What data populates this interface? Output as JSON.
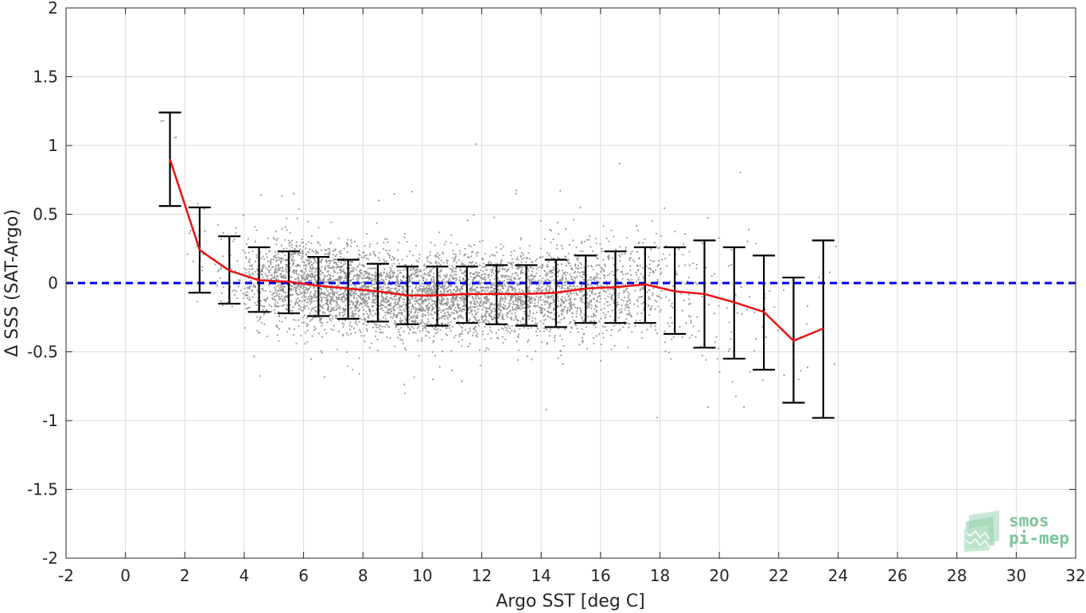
{
  "chart_data": {
    "type": "scatter",
    "xlabel": "Argo SST [deg C]",
    "ylabel": "Δ SSS (SAT-Argo)",
    "xlim": [
      -2,
      32
    ],
    "ylim": [
      -2,
      2
    ],
    "x_ticks": [
      -2,
      0,
      2,
      4,
      6,
      8,
      10,
      12,
      14,
      16,
      18,
      20,
      22,
      24,
      26,
      28,
      30,
      32
    ],
    "y_ticks": [
      -2,
      -1.5,
      -1,
      -0.5,
      0,
      0.5,
      1,
      1.5,
      2
    ],
    "grid": true,
    "reference_line": {
      "y": 0,
      "style": "dashed",
      "color": "#0000ee"
    },
    "mean_line_color": "#ee1111",
    "error_bar_color": "#000000",
    "scatter_color": "#8c8c8c",
    "binned_stats": {
      "x": [
        1.5,
        2.5,
        3.5,
        4.5,
        5.5,
        6.5,
        7.5,
        8.5,
        9.5,
        10.5,
        11.5,
        12.5,
        13.5,
        14.5,
        15.5,
        16.5,
        17.5,
        18.5,
        19.5,
        20.5,
        21.5,
        22.5,
        23.5
      ],
      "mean": [
        0.9,
        0.24,
        0.09,
        0.02,
        0.01,
        -0.02,
        -0.04,
        -0.06,
        -0.09,
        -0.09,
        -0.08,
        -0.08,
        -0.08,
        -0.07,
        -0.04,
        -0.03,
        -0.01,
        -0.06,
        -0.08,
        -0.14,
        -0.21,
        -0.42,
        -0.33
      ],
      "upper": [
        1.24,
        0.55,
        0.34,
        0.26,
        0.23,
        0.19,
        0.17,
        0.14,
        0.12,
        0.12,
        0.12,
        0.13,
        0.13,
        0.17,
        0.2,
        0.23,
        0.26,
        0.26,
        0.31,
        0.26,
        0.2,
        0.04,
        0.31
      ],
      "lower": [
        0.56,
        -0.07,
        -0.15,
        -0.21,
        -0.22,
        -0.24,
        -0.26,
        -0.28,
        -0.3,
        -0.31,
        -0.29,
        -0.3,
        -0.31,
        -0.32,
        -0.29,
        -0.29,
        -0.29,
        -0.37,
        -0.47,
        -0.55,
        -0.63,
        -0.87,
        -0.98
      ]
    },
    "scatter_density": {
      "x": [
        1.5,
        2.5,
        3.5,
        4.5,
        5.5,
        6.5,
        7.5,
        8.5,
        9.5,
        10.5,
        11.5,
        12.5,
        13.5,
        14.5,
        15.5,
        16.5,
        17.5,
        18.5,
        19.5,
        20.5,
        21.5,
        22.5,
        23.5
      ],
      "relative_count": [
        0.01,
        0.03,
        0.1,
        0.45,
        0.9,
        1.0,
        1.0,
        1.0,
        1.0,
        1.0,
        0.95,
        0.9,
        0.85,
        0.75,
        0.6,
        0.45,
        0.3,
        0.15,
        0.08,
        0.05,
        0.04,
        0.02,
        0.01
      ]
    }
  },
  "logo": {
    "line1": "smos",
    "line2": "pi-mep",
    "color": "#7bc49a"
  }
}
